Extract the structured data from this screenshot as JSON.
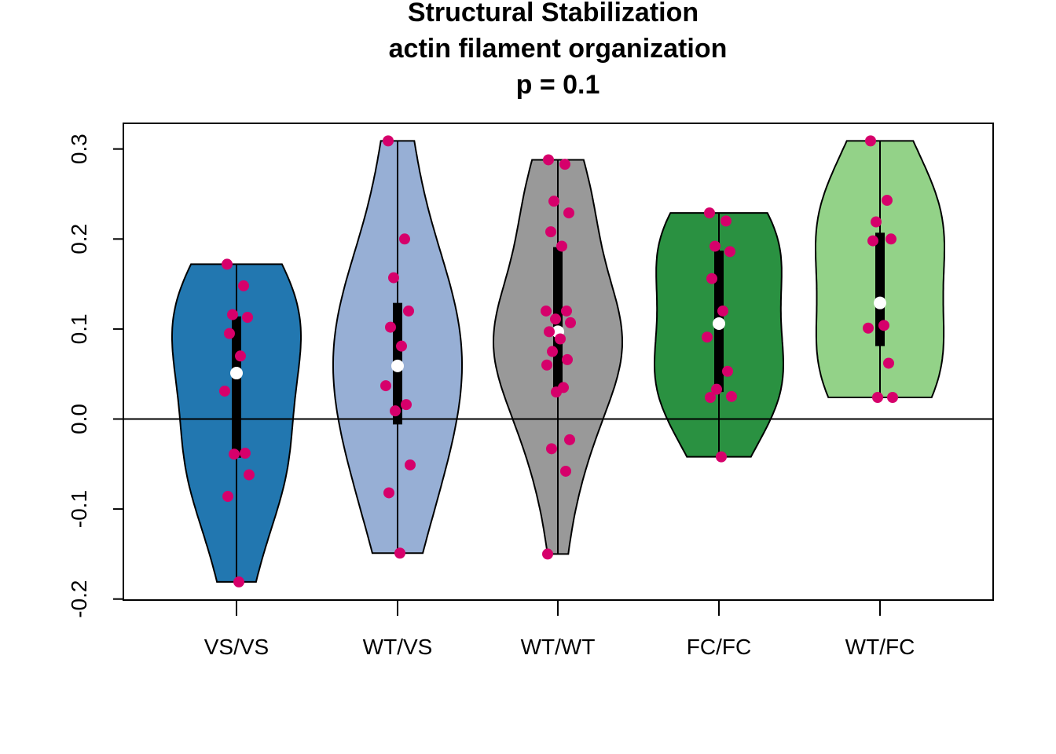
{
  "chart_data": {
    "type": "violin",
    "title": [
      "Structural Stabilization",
      "actin filament organization",
      "p = 0.1"
    ],
    "xlabel": "",
    "ylabel": "",
    "categories": [
      "VS/VS",
      "WT/VS",
      "WT/WT",
      "FC/FC",
      "WT/FC"
    ],
    "ylim": [
      -0.2,
      0.3
    ],
    "yticks": [
      "-0.2",
      "-0.1",
      "0.0",
      "0.1",
      "0.2",
      "0.3"
    ],
    "reference_line_y": 0.0,
    "point_color": "#D6006B",
    "groups": [
      {
        "name": "VS/VS",
        "color": "#2277B0",
        "min": -0.181,
        "max": 0.172,
        "q1": -0.043,
        "median": 0.051,
        "q3": 0.114,
        "points": [
          0.172,
          0.148,
          0.116,
          0.113,
          0.095,
          0.07,
          0.031,
          -0.038,
          -0.039,
          -0.062,
          -0.086,
          -0.181
        ]
      },
      {
        "name": "WT/VS",
        "color": "#97AFD5",
        "min": -0.149,
        "max": 0.309,
        "q1": -0.006,
        "median": 0.059,
        "q3": 0.129,
        "points": [
          0.309,
          0.2,
          0.157,
          0.12,
          0.102,
          0.081,
          0.037,
          0.016,
          0.009,
          -0.051,
          -0.082,
          -0.149
        ]
      },
      {
        "name": "WT/WT",
        "color": "#999999",
        "min": -0.15,
        "max": 0.288,
        "q1": 0.035,
        "median": 0.097,
        "q3": 0.191,
        "points": [
          0.288,
          0.283,
          0.242,
          0.229,
          0.208,
          0.192,
          0.12,
          0.12,
          0.111,
          0.107,
          0.097,
          0.089,
          0.075,
          0.066,
          0.06,
          0.035,
          0.03,
          -0.023,
          -0.033,
          -0.058,
          -0.15
        ]
      },
      {
        "name": "FC/FC",
        "color": "#2A9141",
        "min": -0.042,
        "max": 0.229,
        "q1": 0.03,
        "median": 0.106,
        "q3": 0.187,
        "points": [
          0.229,
          0.22,
          0.192,
          0.186,
          0.156,
          0.12,
          0.091,
          0.053,
          0.033,
          0.025,
          0.024,
          -0.042
        ]
      },
      {
        "name": "WT/FC",
        "color": "#93D288",
        "min": 0.024,
        "max": 0.309,
        "q1": 0.081,
        "median": 0.129,
        "q3": 0.207,
        "points": [
          0.309,
          0.243,
          0.219,
          0.2,
          0.198,
          0.104,
          0.101,
          0.062,
          0.024,
          0.024
        ]
      }
    ]
  }
}
